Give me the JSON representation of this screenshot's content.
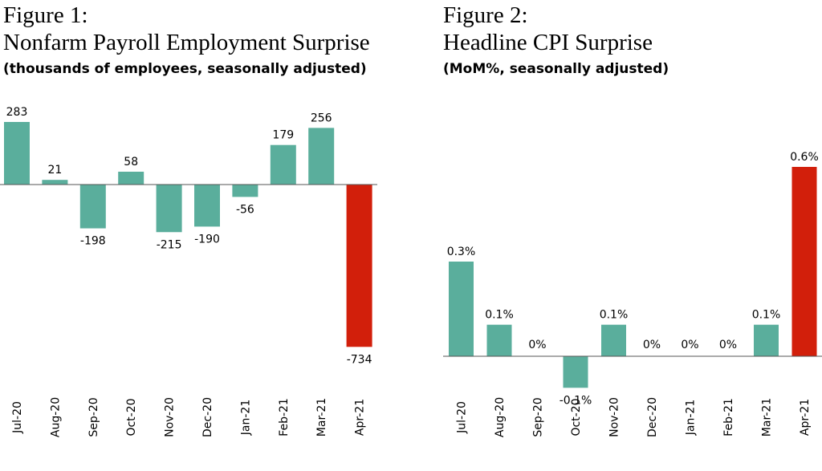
{
  "charts": [
    {
      "figure_label": "Figure 1:",
      "title": "Nonfarm Payroll Employment Surprise",
      "subtitle": "(thousands of employees, seasonally adjusted)"
    },
    {
      "figure_label": "Figure 2:",
      "title": "Headline CPI Surprise",
      "subtitle": "(MoM%, seasonally adjusted)"
    }
  ],
  "colors": {
    "positive": "#5aae9c",
    "highlight": "#d21f0b",
    "axis": "#555555"
  },
  "chart_data": [
    {
      "type": "bar",
      "title": "Nonfarm Payroll Employment Surprise",
      "subtitle": "(thousands of employees, seasonally adjusted)",
      "categories": [
        "Jul-20",
        "Aug-20",
        "Sep-20",
        "Oct-20",
        "Nov-20",
        "Dec-20",
        "Jan-21",
        "Feb-21",
        "Mar-21",
        "Apr-21"
      ],
      "values": [
        283,
        21,
        -198,
        58,
        -215,
        -190,
        -56,
        179,
        256,
        -734
      ],
      "value_labels": [
        "283",
        "21",
        "-198",
        "58",
        "-215",
        "-190",
        "-56",
        "179",
        "256",
        "-734"
      ],
      "highlight_index": 9,
      "ylim": [
        -734,
        283
      ],
      "grid": false,
      "legend": "none"
    },
    {
      "type": "bar",
      "title": "Headline CPI Surprise",
      "subtitle": "(MoM%, seasonally adjusted)",
      "categories": [
        "Jul-20",
        "Aug-20",
        "Sep-20",
        "Oct-20",
        "Nov-20",
        "Dec-20",
        "Jan-21",
        "Feb-21",
        "Mar-21",
        "Apr-21"
      ],
      "values": [
        0.3,
        0.1,
        0,
        -0.1,
        0.1,
        0,
        0,
        0,
        0.1,
        0.6
      ],
      "value_labels": [
        "0.3%",
        "0.1%",
        "0%",
        "-0.1%",
        "0.1%",
        "0%",
        "0%",
        "0%",
        "0.1%",
        "0.6%"
      ],
      "highlight_index": 9,
      "ylim": [
        -0.1,
        0.6
      ],
      "grid": false,
      "legend": "none"
    }
  ]
}
